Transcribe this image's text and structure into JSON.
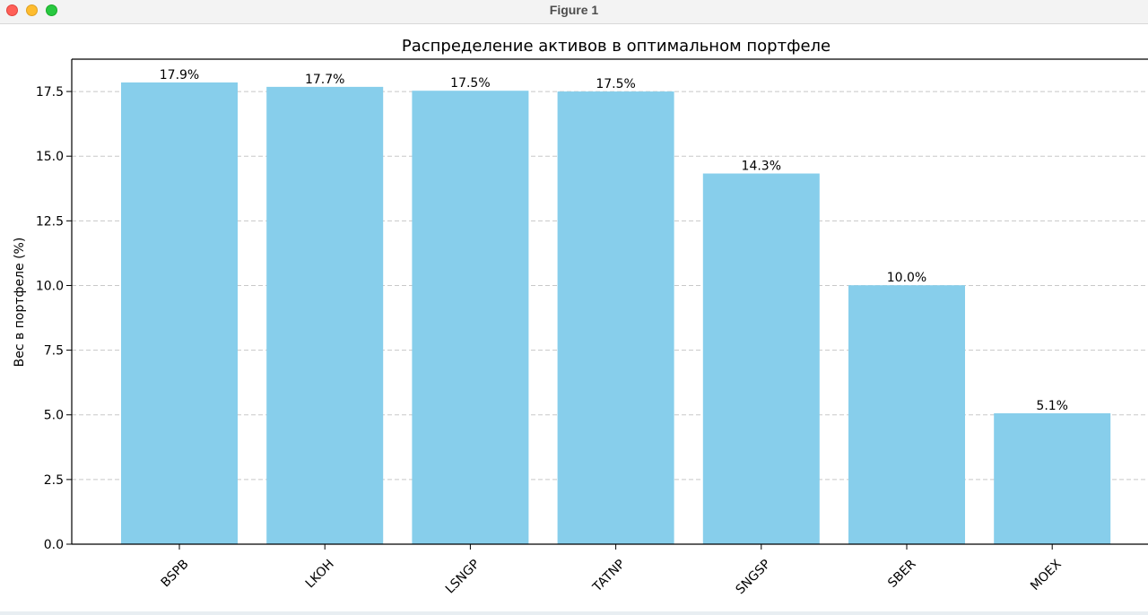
{
  "window": {
    "title": "Figure 1",
    "controls": [
      "close",
      "minimize",
      "maximize"
    ]
  },
  "chart_data": {
    "type": "bar",
    "title": "Распределение активов в оптимальном портфеле",
    "xlabel": "",
    "ylabel": "Вес в портфеле (%)",
    "categories": [
      "BSPB",
      "LKOH",
      "LSNGP",
      "TATNP",
      "SNGSP",
      "SBER",
      "MOEX"
    ],
    "values": [
      17.85,
      17.68,
      17.53,
      17.5,
      14.33,
      10.01,
      5.06
    ],
    "data_labels": [
      "17.9%",
      "17.7%",
      "17.5%",
      "17.5%",
      "14.3%",
      "10.0%",
      "5.1%"
    ],
    "ylim": [
      0,
      18.75
    ],
    "yticks": [
      0,
      2.5,
      5,
      7.5,
      10,
      12.5,
      15,
      17.5
    ],
    "ytick_labels": [
      "0.0",
      "2.5",
      "5.0",
      "7.5",
      "10.0",
      "12.5",
      "15.0",
      "17.5"
    ],
    "grid": "y, dashed",
    "bar_color": "#87ceeb",
    "grid_color": "#c8c8c8",
    "xtick_rotation": 45
  }
}
